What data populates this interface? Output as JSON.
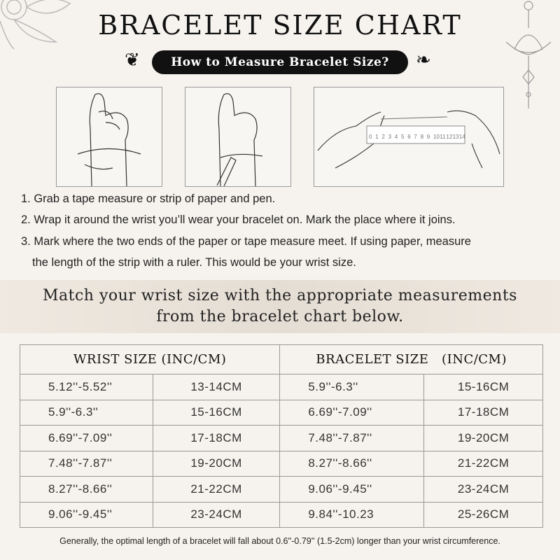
{
  "title": "BRACELET SIZE CHART",
  "subtitle": "How to Measure Bracelet Size?",
  "ruler_numbers": [
    "0",
    "1",
    "2",
    "3",
    "4",
    "5",
    "6",
    "7",
    "8",
    "9",
    "10",
    "11",
    "12",
    "13",
    "14"
  ],
  "steps": [
    "1. Grab a tape measure or strip of paper and pen.",
    "2. Wrap it around the wrist you’ll wear your bracelet on. Mark the place where it joins.",
    "3. Mark where the two ends of the paper or tape measure meet. If using paper, measure",
    "the length of the strip with a ruler. This would be your wrist size."
  ],
  "match_text": [
    "Match your wrist size with the appropriate measurements",
    "from the bracelet chart below."
  ],
  "table": {
    "headers": [
      "WRIST SIZE (INC/CM)",
      "BRACELET SIZE   (INC/CM)"
    ],
    "rows": [
      [
        "5.12''-5.52''",
        "13-14CM",
        "5.9''-6.3''",
        "15-16CM"
      ],
      [
        "5.9''-6.3''",
        "15-16CM",
        "6.69''-7.09''",
        "17-18CM"
      ],
      [
        "6.69''-7.09''",
        "17-18CM",
        "7.48''-7.87''",
        "19-20CM"
      ],
      [
        "7.48''-7.87''",
        "19-20CM",
        "8.27''-8.66''",
        "21-22CM"
      ],
      [
        "8.27''-8.66''",
        "21-22CM",
        "9.06''-9.45''",
        "23-24CM"
      ],
      [
        "9.06''-9.45''",
        "23-24CM",
        "9.84''-10.23",
        "25-26CM"
      ]
    ]
  },
  "footnote": "Generally, the optimal length of a bracelet will fall about 0.6''-0.79'' (1.5-2cm) longer than your wrist circumference.",
  "colors": {
    "background": "#f6f3ee",
    "pill": "#111111",
    "border": "#999999"
  }
}
